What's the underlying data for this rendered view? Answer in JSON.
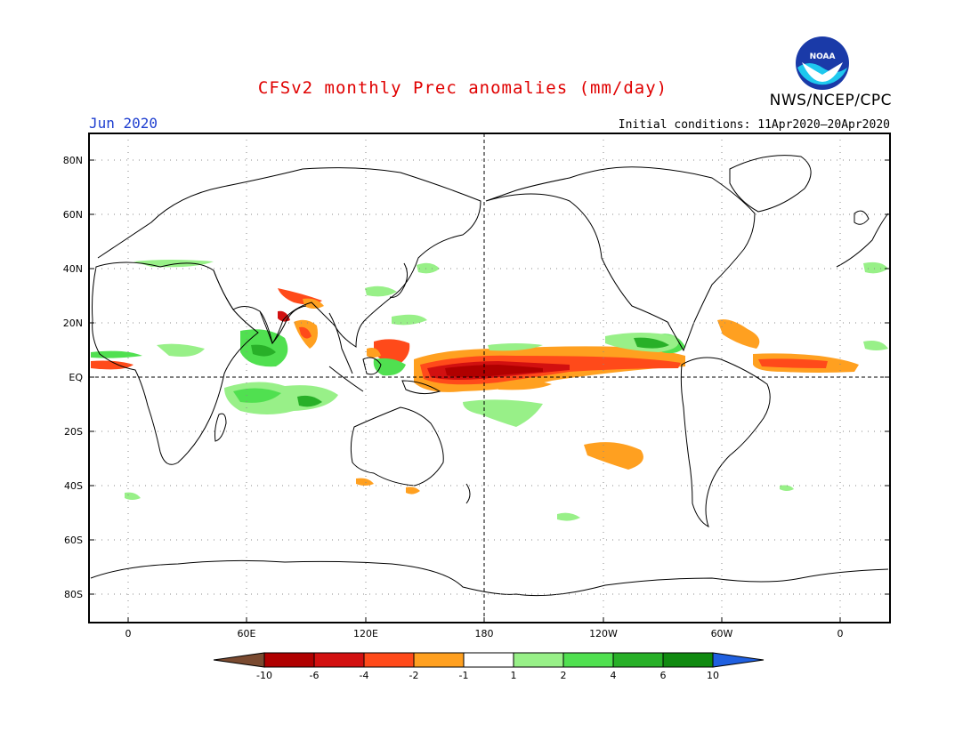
{
  "header": {
    "title": "CFSv2 monthly Prec anomalies (mm/day)",
    "agency": "NWS/NCEP/CPC",
    "valid_month": "Jun 2020",
    "initial_conditions": "Initial conditions: 11Apr2020–20Apr2020",
    "logo_text": "NOAA"
  },
  "colors": {
    "title": "#e00000",
    "valid_month": "#1f3fd0",
    "frame": "#000000"
  },
  "map": {
    "lat_labels": [
      "80N",
      "60N",
      "40N",
      "20N",
      "EQ",
      "20S",
      "40S",
      "60S",
      "80S"
    ],
    "lon_labels": [
      "0",
      "60E",
      "120E",
      "180",
      "120W",
      "60W",
      "0"
    ]
  },
  "colorbar": {
    "levels": [
      "-10",
      "-6",
      "-4",
      "-2",
      "-1",
      "1",
      "2",
      "4",
      "6",
      "10"
    ],
    "colors": [
      "#7a4a30",
      "#b00000",
      "#d21010",
      "#ff4a1a",
      "#ffa020",
      "#ffffff",
      "#98f088",
      "#50e050",
      "#28b028",
      "#108a10",
      "#2060e0"
    ]
  }
}
